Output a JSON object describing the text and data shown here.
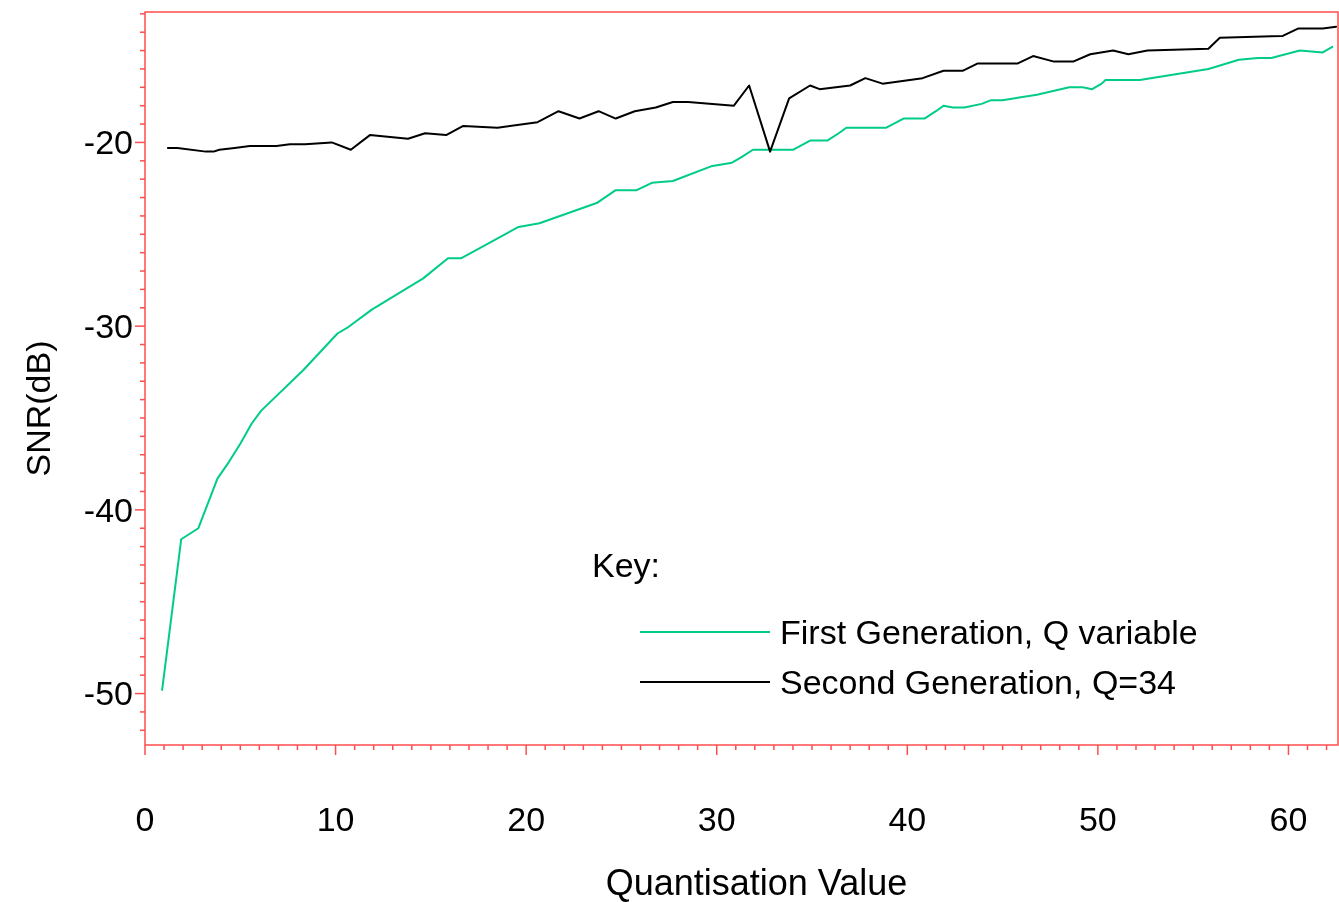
{
  "chart_data": {
    "type": "line",
    "xlabel": "Quantisation Value",
    "ylabel": "SNR(dB)",
    "legend_title": "Key:",
    "legend": "bottom right",
    "grid": false,
    "marker": "none",
    "line_style": "solid",
    "xlim": [
      0,
      62.6
    ],
    "ylim": [
      -52.8,
      -12.9
    ],
    "xticks": [
      0,
      {
        "value": 1,
        "label": null
      },
      {
        "value": 2,
        "label": null
      },
      {
        "value": 3,
        "label": null
      },
      {
        "value": 4,
        "label": null
      },
      {
        "value": 5,
        "label": null
      },
      {
        "value": 6,
        "label": null
      },
      {
        "value": 7,
        "label": null
      },
      {
        "value": 8,
        "label": null
      },
      {
        "value": 9,
        "label": null
      },
      10,
      {
        "value": 11,
        "label": null
      },
      {
        "value": 12,
        "label": null
      },
      {
        "value": 13,
        "label": null
      },
      {
        "value": 14,
        "label": null
      },
      {
        "value": 15,
        "label": null
      },
      {
        "value": 16,
        "label": null
      },
      {
        "value": 17,
        "label": null
      },
      {
        "value": 18,
        "label": null
      },
      {
        "value": 19,
        "label": null
      },
      20,
      {
        "value": 21,
        "label": null
      },
      {
        "value": 22,
        "label": null
      },
      {
        "value": 23,
        "label": null
      },
      {
        "value": 24,
        "label": null
      },
      {
        "value": 25,
        "label": null
      },
      {
        "value": 26,
        "label": null
      },
      {
        "value": 27,
        "label": null
      },
      {
        "value": 28,
        "label": null
      },
      {
        "value": 29,
        "label": null
      },
      30,
      {
        "value": 31,
        "label": null
      },
      {
        "value": 32,
        "label": null
      },
      {
        "value": 33,
        "label": null
      },
      {
        "value": 34,
        "label": null
      },
      {
        "value": 35,
        "label": null
      },
      {
        "value": 36,
        "label": null
      },
      {
        "value": 37,
        "label": null
      },
      {
        "value": 38,
        "label": null
      },
      {
        "value": 39,
        "label": null
      },
      40,
      {
        "value": 41,
        "label": null
      },
      {
        "value": 42,
        "label": null
      },
      {
        "value": 43,
        "label": null
      },
      {
        "value": 44,
        "label": null
      },
      {
        "value": 45,
        "label": null
      },
      {
        "value": 46,
        "label": null
      },
      {
        "value": 47,
        "label": null
      },
      {
        "value": 48,
        "label": null
      },
      {
        "value": 49,
        "label": null
      },
      50,
      {
        "value": 51,
        "label": null
      },
      {
        "value": 52,
        "label": null
      },
      {
        "value": 53,
        "label": null
      },
      {
        "value": 54,
        "label": null
      },
      {
        "value": 55,
        "label": null
      },
      {
        "value": 56,
        "label": null
      },
      {
        "value": 57,
        "label": null
      },
      {
        "value": 58,
        "label": null
      },
      {
        "value": 59,
        "label": null
      },
      60,
      {
        "value": 61,
        "label": null
      },
      {
        "value": 62,
        "label": null
      }
    ],
    "yticks": [
      {
        "value": -52,
        "label": null
      },
      {
        "value": -51,
        "label": null
      },
      -50,
      {
        "value": -49,
        "label": null
      },
      {
        "value": -48,
        "label": null
      },
      {
        "value": -47,
        "label": null
      },
      {
        "value": -46,
        "label": null
      },
      {
        "value": -45,
        "label": null
      },
      {
        "value": -44,
        "label": null
      },
      {
        "value": -43,
        "label": null
      },
      {
        "value": -42,
        "label": null
      },
      {
        "value": -41,
        "label": null
      },
      -40,
      {
        "value": -39,
        "label": null
      },
      {
        "value": -38,
        "label": null
      },
      {
        "value": -37,
        "label": null
      },
      {
        "value": -36,
        "label": null
      },
      {
        "value": -35,
        "label": null
      },
      {
        "value": -34,
        "label": null
      },
      {
        "value": -33,
        "label": null
      },
      {
        "value": -32,
        "label": null
      },
      {
        "value": -31,
        "label": null
      },
      -30,
      {
        "value": -29,
        "label": null
      },
      {
        "value": -28,
        "label": null
      },
      {
        "value": -27,
        "label": null
      },
      {
        "value": -26,
        "label": null
      },
      {
        "value": -25,
        "label": null
      },
      {
        "value": -24,
        "label": null
      },
      {
        "value": -23,
        "label": null
      },
      {
        "value": -22,
        "label": null
      },
      {
        "value": -21,
        "label": null
      },
      -20,
      {
        "value": -19,
        "label": null
      },
      {
        "value": -18,
        "label": null
      },
      {
        "value": -17,
        "label": null
      },
      {
        "value": -16,
        "label": null
      },
      {
        "value": -15,
        "label": null
      },
      {
        "value": -14,
        "label": null
      },
      {
        "value": -13,
        "label": null
      }
    ],
    "series": [
      {
        "name": "First Generation, Q variable",
        "color": "#00cc88",
        "x": [
          0.9,
          1.9,
          2.8,
          3.8,
          4.4,
          5.0,
          5.6,
          6.1,
          8.3,
          10.1,
          10.6,
          11.9,
          12.7,
          14.6,
          15.9,
          16.6,
          19.6,
          20.7,
          23.7,
          24.7,
          25.8,
          26.6,
          27.7,
          29.7,
          30.8,
          31.3,
          31.9,
          34.0,
          34.9,
          35.8,
          36.4,
          36.8,
          38.9,
          39.8,
          40.9,
          41.5,
          41.9,
          42.4,
          43.0,
          43.9,
          44.4,
          45.0,
          46.8,
          48.5,
          49.2,
          49.7,
          50.2,
          50.4,
          52.2,
          55.8,
          57.4,
          58.4,
          59.1,
          60.6,
          61.8,
          62.3
        ],
        "values": [
          -49.8,
          -41.6,
          -41.0,
          -38.3,
          -37.4,
          -36.4,
          -35.3,
          -34.6,
          -32.4,
          -30.4,
          -30.1,
          -29.1,
          -28.6,
          -27.4,
          -26.3,
          -26.3,
          -24.6,
          -24.4,
          -23.3,
          -22.6,
          -22.6,
          -22.2,
          -22.1,
          -21.3,
          -21.1,
          -20.8,
          -20.4,
          -20.4,
          -19.9,
          -19.9,
          -19.5,
          -19.2,
          -19.2,
          -18.7,
          -18.7,
          -18.3,
          -18.0,
          -18.1,
          -18.1,
          -17.9,
          -17.7,
          -17.7,
          -17.4,
          -17.0,
          -17.0,
          -17.1,
          -16.8,
          -16.6,
          -16.6,
          -16.0,
          -15.5,
          -15.4,
          -15.4,
          -15.0,
          -15.1,
          -14.8
        ]
      },
      {
        "name": "Second Generation, Q=34",
        "color": "#000000",
        "x": [
          1.2,
          1.7,
          3.2,
          3.6,
          3.9,
          4.7,
          5.5,
          6.9,
          7.6,
          8.4,
          9.8,
          10.8,
          11.8,
          13.8,
          14.7,
          15.8,
          16.7,
          18.5,
          20.6,
          21.7,
          22.8,
          23.8,
          24.7,
          25.7,
          26.8,
          27.7,
          28.5,
          30.9,
          31.7,
          32.8,
          33.8,
          34.9,
          35.4,
          37.0,
          37.8,
          38.7,
          40.8,
          41.9,
          42.9,
          43.7,
          45.8,
          46.6,
          47.7,
          48.7,
          49.6,
          50.8,
          51.6,
          52.6,
          55.8,
          56.4,
          59.7,
          60.5,
          61.8,
          62.5
        ],
        "values": [
          -20.3,
          -20.3,
          -20.5,
          -20.5,
          -20.4,
          -20.3,
          -20.2,
          -20.2,
          -20.1,
          -20.1,
          -20.0,
          -20.4,
          -19.6,
          -19.8,
          -19.5,
          -19.6,
          -19.1,
          -19.2,
          -18.9,
          -18.3,
          -18.7,
          -18.3,
          -18.7,
          -18.3,
          -18.1,
          -17.8,
          -17.8,
          -18.0,
          -16.9,
          -20.5,
          -17.6,
          -16.9,
          -17.1,
          -16.9,
          -16.5,
          -16.8,
          -16.5,
          -16.1,
          -16.1,
          -15.7,
          -15.7,
          -15.3,
          -15.6,
          -15.6,
          -15.2,
          -15.0,
          -15.2,
          -15.0,
          -14.9,
          -14.3,
          -14.2,
          -13.8,
          -13.8,
          -13.7
        ]
      }
    ]
  }
}
